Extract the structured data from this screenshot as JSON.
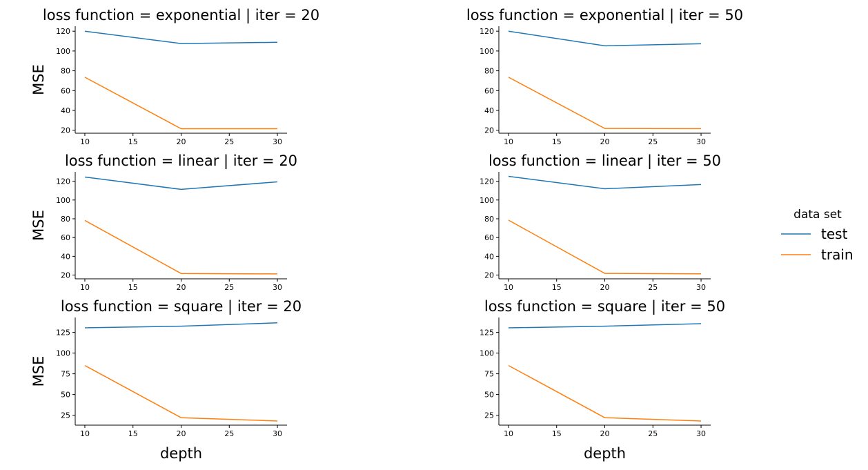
{
  "legend": {
    "title": "data set",
    "placement": "right",
    "entries": [
      {
        "name": "test",
        "color": "#1f77b4"
      },
      {
        "name": "train",
        "color": "#ff7f0e"
      }
    ]
  },
  "chart_data": [
    {
      "type": "line",
      "title": "loss function = exponential | iter = 20",
      "xlabel": "",
      "ylabel": "MSE",
      "x": [
        10,
        20,
        30
      ],
      "xlim": [
        9,
        31
      ],
      "ylim": [
        17,
        125
      ],
      "xticks": [
        10,
        15,
        20,
        25,
        30
      ],
      "yticks": [
        20,
        40,
        60,
        80,
        100,
        120
      ],
      "grid": false,
      "series": [
        {
          "name": "test",
          "color": "#1f77b4",
          "values": [
            120,
            107.5,
            108.8
          ]
        },
        {
          "name": "train",
          "color": "#ff7f0e",
          "values": [
            73.5,
            21.5,
            21.5
          ]
        }
      ]
    },
    {
      "type": "line",
      "title": "loss function = exponential | iter = 50",
      "xlabel": "",
      "ylabel": "",
      "x": [
        10,
        20,
        30
      ],
      "xlim": [
        9,
        31
      ],
      "ylim": [
        17,
        125
      ],
      "xticks": [
        10,
        15,
        20,
        25,
        30
      ],
      "yticks": [
        20,
        40,
        60,
        80,
        100,
        120
      ],
      "grid": false,
      "series": [
        {
          "name": "test",
          "color": "#1f77b4",
          "values": [
            120,
            105.2,
            107.3
          ]
        },
        {
          "name": "train",
          "color": "#ff7f0e",
          "values": [
            73.5,
            21.8,
            21.6
          ]
        }
      ]
    },
    {
      "type": "line",
      "title": "loss function = linear | iter = 20",
      "xlabel": "",
      "ylabel": "MSE",
      "x": [
        10,
        20,
        30
      ],
      "xlim": [
        9,
        31
      ],
      "ylim": [
        16,
        130
      ],
      "xticks": [
        10,
        15,
        20,
        25,
        30
      ],
      "yticks": [
        20,
        40,
        60,
        80,
        100,
        120
      ],
      "grid": false,
      "series": [
        {
          "name": "test",
          "color": "#1f77b4",
          "values": [
            124.5,
            111.3,
            119.3
          ]
        },
        {
          "name": "train",
          "color": "#ff7f0e",
          "values": [
            78.2,
            21.7,
            21.2
          ]
        }
      ]
    },
    {
      "type": "line",
      "title": "loss function = linear | iter = 50",
      "xlabel": "",
      "ylabel": "",
      "x": [
        10,
        20,
        30
      ],
      "xlim": [
        9,
        31
      ],
      "ylim": [
        16,
        130
      ],
      "xticks": [
        10,
        15,
        20,
        25,
        30
      ],
      "yticks": [
        20,
        40,
        60,
        80,
        100,
        120
      ],
      "grid": false,
      "series": [
        {
          "name": "test",
          "color": "#1f77b4",
          "values": [
            125.2,
            112,
            116.5
          ]
        },
        {
          "name": "train",
          "color": "#ff7f0e",
          "values": [
            78.5,
            21.8,
            21.3
          ]
        }
      ]
    },
    {
      "type": "line",
      "title": "loss function = square | iter = 20",
      "xlabel": "depth",
      "ylabel": "MSE",
      "x": [
        10,
        20,
        30
      ],
      "xlim": [
        9,
        31
      ],
      "ylim": [
        13,
        143
      ],
      "xticks": [
        10,
        15,
        20,
        25,
        30
      ],
      "yticks": [
        25,
        50,
        75,
        100,
        125
      ],
      "grid": false,
      "series": [
        {
          "name": "test",
          "color": "#1f77b4",
          "values": [
            130.5,
            132.5,
            136.5
          ]
        },
        {
          "name": "train",
          "color": "#ff7f0e",
          "values": [
            85,
            22,
            18
          ]
        }
      ]
    },
    {
      "type": "line",
      "title": "loss function = square | iter = 50",
      "xlabel": "depth",
      "ylabel": "",
      "x": [
        10,
        20,
        30
      ],
      "xlim": [
        9,
        31
      ],
      "ylim": [
        13,
        143
      ],
      "xticks": [
        10,
        15,
        20,
        25,
        30
      ],
      "yticks": [
        25,
        50,
        75,
        100,
        125
      ],
      "grid": false,
      "series": [
        {
          "name": "test",
          "color": "#1f77b4",
          "values": [
            130.5,
            132.5,
            135.5
          ]
        },
        {
          "name": "train",
          "color": "#ff7f0e",
          "values": [
            85,
            22,
            18
          ]
        }
      ]
    }
  ]
}
